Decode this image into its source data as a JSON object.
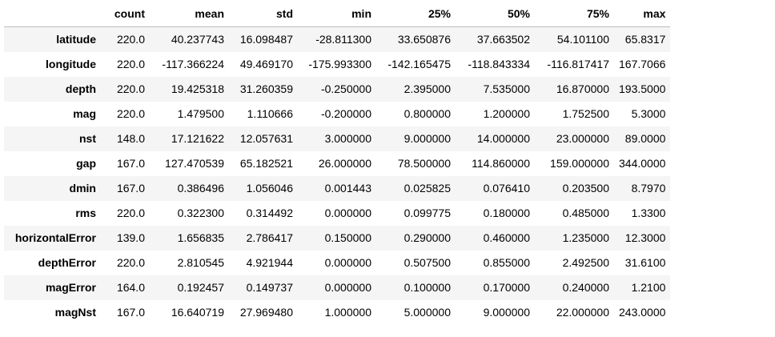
{
  "table": {
    "columns": [
      "",
      "count",
      "mean",
      "std",
      "min",
      "25%",
      "50%",
      "75%",
      "max"
    ],
    "rows": [
      {
        "label": "latitude",
        "values": [
          "220.0",
          "40.237743",
          "16.098487",
          "-28.811300",
          "33.650876",
          "37.663502",
          "54.101100",
          "65.8317"
        ]
      },
      {
        "label": "longitude",
        "values": [
          "220.0",
          "-117.366224",
          "49.469170",
          "-175.993300",
          "-142.165475",
          "-118.843334",
          "-116.817417",
          "167.7066"
        ]
      },
      {
        "label": "depth",
        "values": [
          "220.0",
          "19.425318",
          "31.260359",
          "-0.250000",
          "2.395000",
          "7.535000",
          "16.870000",
          "193.5000"
        ]
      },
      {
        "label": "mag",
        "values": [
          "220.0",
          "1.479500",
          "1.110666",
          "-0.200000",
          "0.800000",
          "1.200000",
          "1.752500",
          "5.3000"
        ]
      },
      {
        "label": "nst",
        "values": [
          "148.0",
          "17.121622",
          "12.057631",
          "3.000000",
          "9.000000",
          "14.000000",
          "23.000000",
          "89.0000"
        ]
      },
      {
        "label": "gap",
        "values": [
          "167.0",
          "127.470539",
          "65.182521",
          "26.000000",
          "78.500000",
          "114.860000",
          "159.000000",
          "344.0000"
        ]
      },
      {
        "label": "dmin",
        "values": [
          "167.0",
          "0.386496",
          "1.056046",
          "0.001443",
          "0.025825",
          "0.076410",
          "0.203500",
          "8.7970"
        ]
      },
      {
        "label": "rms",
        "values": [
          "220.0",
          "0.322300",
          "0.314492",
          "0.000000",
          "0.099775",
          "0.180000",
          "0.485000",
          "1.3300"
        ]
      },
      {
        "label": "horizontalError",
        "values": [
          "139.0",
          "1.656835",
          "2.786417",
          "0.150000",
          "0.290000",
          "0.460000",
          "1.235000",
          "12.3000"
        ]
      },
      {
        "label": "depthError",
        "values": [
          "220.0",
          "2.810545",
          "4.921944",
          "0.000000",
          "0.507500",
          "0.855000",
          "2.492500",
          "31.6100"
        ]
      },
      {
        "label": "magError",
        "values": [
          "164.0",
          "0.192457",
          "0.149737",
          "0.000000",
          "0.100000",
          "0.170000",
          "0.240000",
          "1.2100"
        ]
      },
      {
        "label": "magNst",
        "values": [
          "167.0",
          "16.640719",
          "27.969480",
          "1.000000",
          "5.000000",
          "9.000000",
          "22.000000",
          "243.0000"
        ]
      }
    ]
  }
}
